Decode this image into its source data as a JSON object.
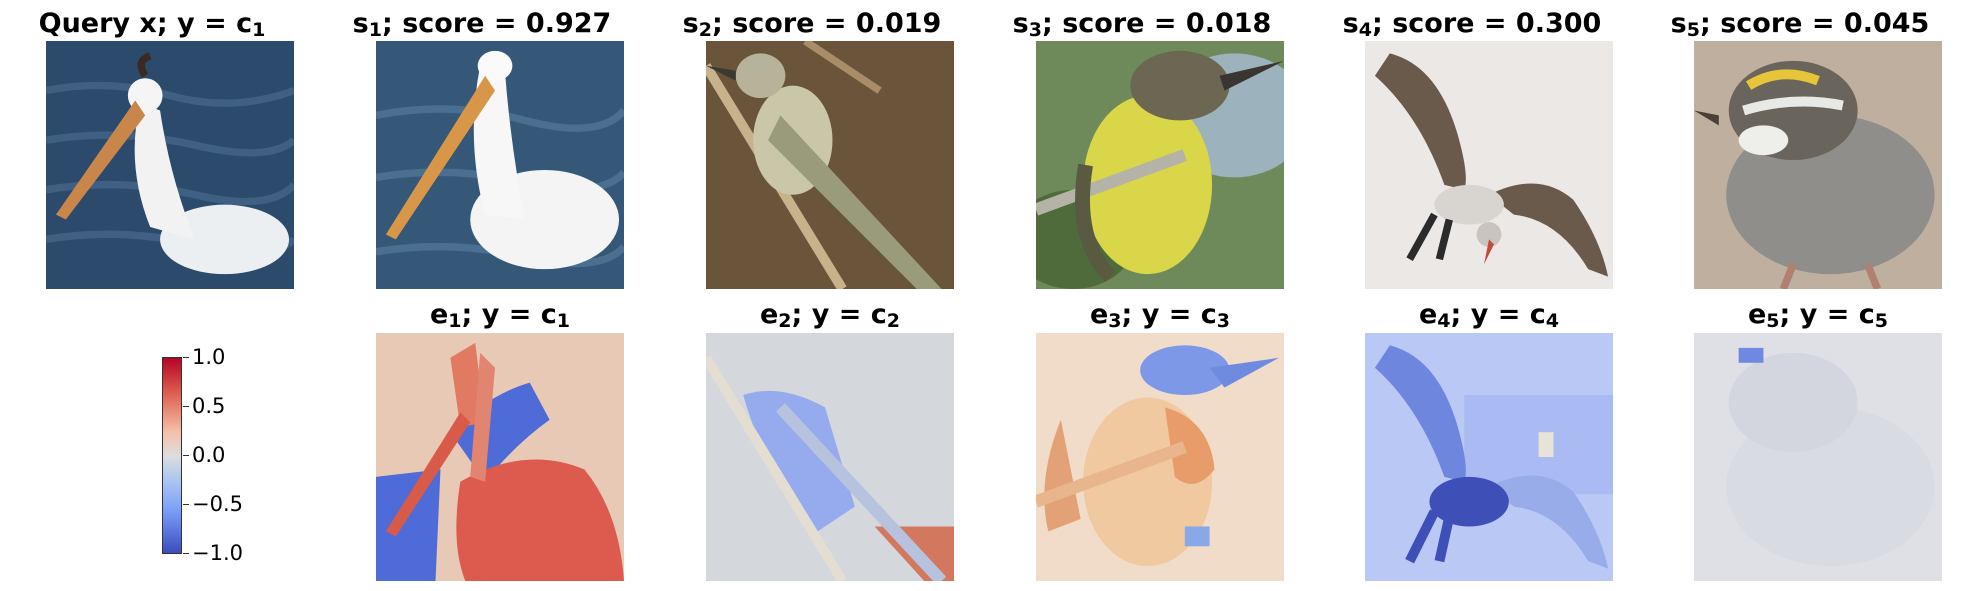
{
  "row1": [
    {
      "name": "Query x",
      "sym": "y",
      "cls": "c",
      "cls_sub": "1",
      "kind": "query"
    },
    {
      "sym": "s",
      "sub": "1",
      "score_label": "score",
      "score": "0.927"
    },
    {
      "sym": "s",
      "sub": "2",
      "score_label": "score",
      "score": "0.019"
    },
    {
      "sym": "s",
      "sub": "3",
      "score_label": "score",
      "score": "0.018"
    },
    {
      "sym": "s",
      "sub": "4",
      "score_label": "score",
      "score": "0.300"
    },
    {
      "sym": "s",
      "sub": "5",
      "score_label": "score",
      "score": "0.045"
    }
  ],
  "row2": [
    {
      "sym": "e",
      "sub": "1",
      "y": "y",
      "cls": "c",
      "cls_sub": "1"
    },
    {
      "sym": "e",
      "sub": "2",
      "y": "y",
      "cls": "c",
      "cls_sub": "2"
    },
    {
      "sym": "e",
      "sub": "3",
      "y": "y",
      "cls": "c",
      "cls_sub": "3"
    },
    {
      "sym": "e",
      "sub": "4",
      "y": "y",
      "cls": "c",
      "cls_sub": "4"
    },
    {
      "sym": "e",
      "sub": "5",
      "y": "y",
      "cls": "c",
      "cls_sub": "5"
    }
  ],
  "colorbar": {
    "ticks": [
      "1.0",
      "0.5",
      "0.0",
      "−0.5",
      "−1.0"
    ],
    "colormap": "coolwarm",
    "high_color": "#b40426",
    "low_color": "#3b4cc0"
  },
  "eq": "=",
  "semi": ";"
}
